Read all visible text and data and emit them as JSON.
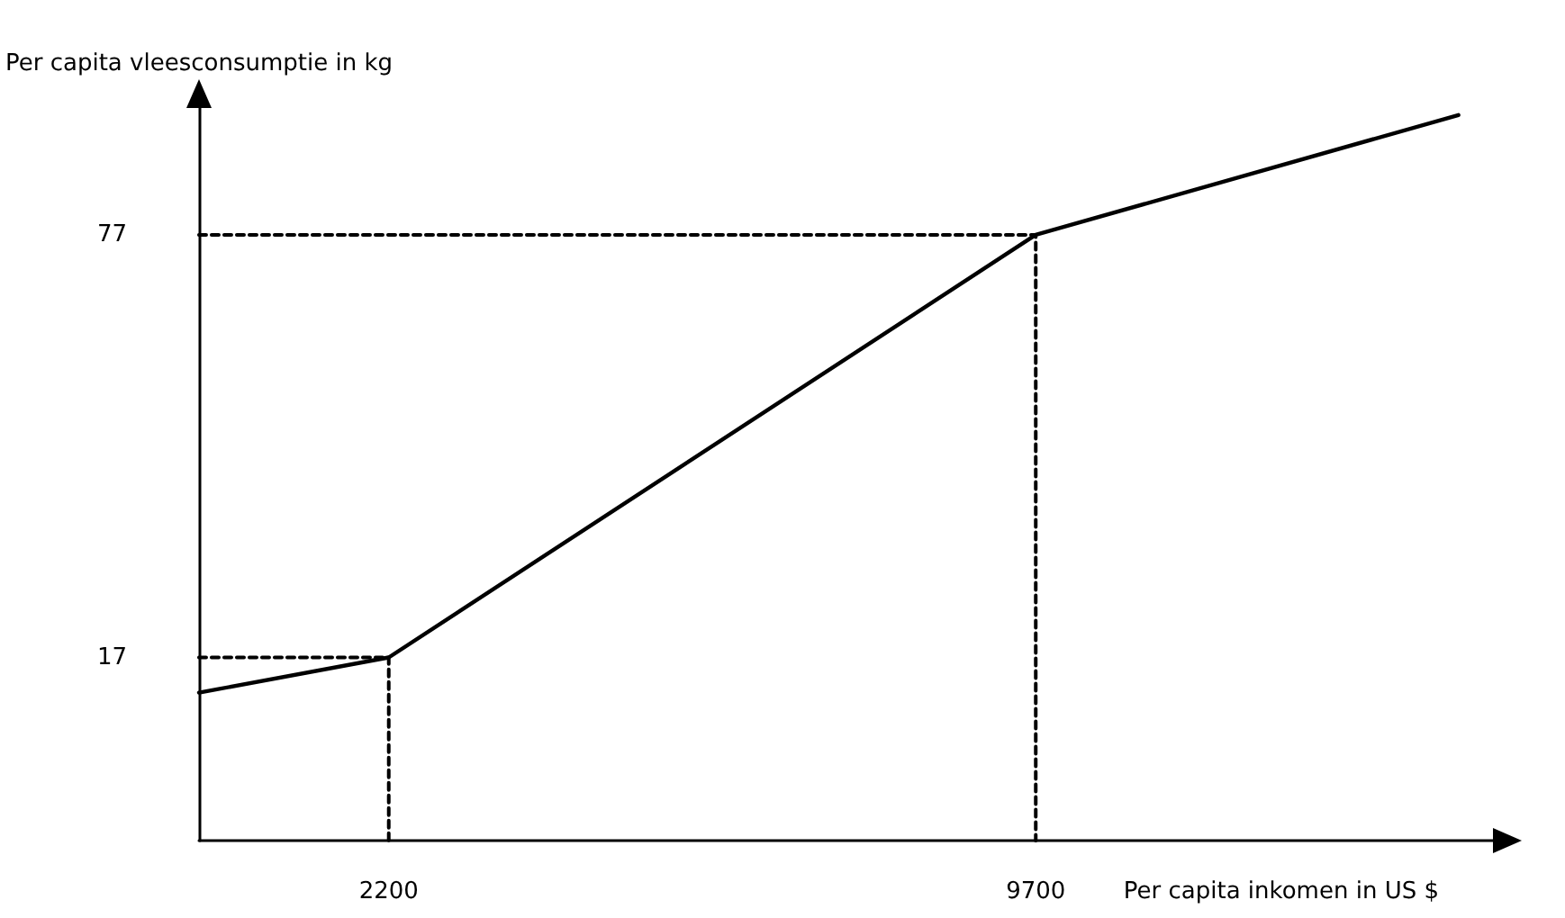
{
  "chart_data": {
    "type": "line",
    "xlabel": "Per capita inkomen in US $",
    "ylabel": "Per capita vleesconsumptie in kg",
    "xlim": [
      0,
      15000
    ],
    "ylim": [
      -9,
      95
    ],
    "xticks": [
      2200,
      9700
    ],
    "yticks": [
      17,
      77
    ],
    "grid": false,
    "marker": "none",
    "series": [
      {
        "color": "#000000",
        "x": [
          0,
          2200,
          9700,
          14600
        ],
        "values": [
          12,
          17,
          77,
          94
        ],
        "line_style": "solid"
      },
      {
        "color": "#000000",
        "x": [
          0,
          2200,
          2200
        ],
        "values": [
          17,
          17,
          -9
        ],
        "line_style": "dashed"
      },
      {
        "color": "#000000",
        "x": [
          0,
          9700,
          9700
        ],
        "values": [
          77,
          77,
          -9
        ],
        "line_style": "dashed"
      }
    ]
  }
}
